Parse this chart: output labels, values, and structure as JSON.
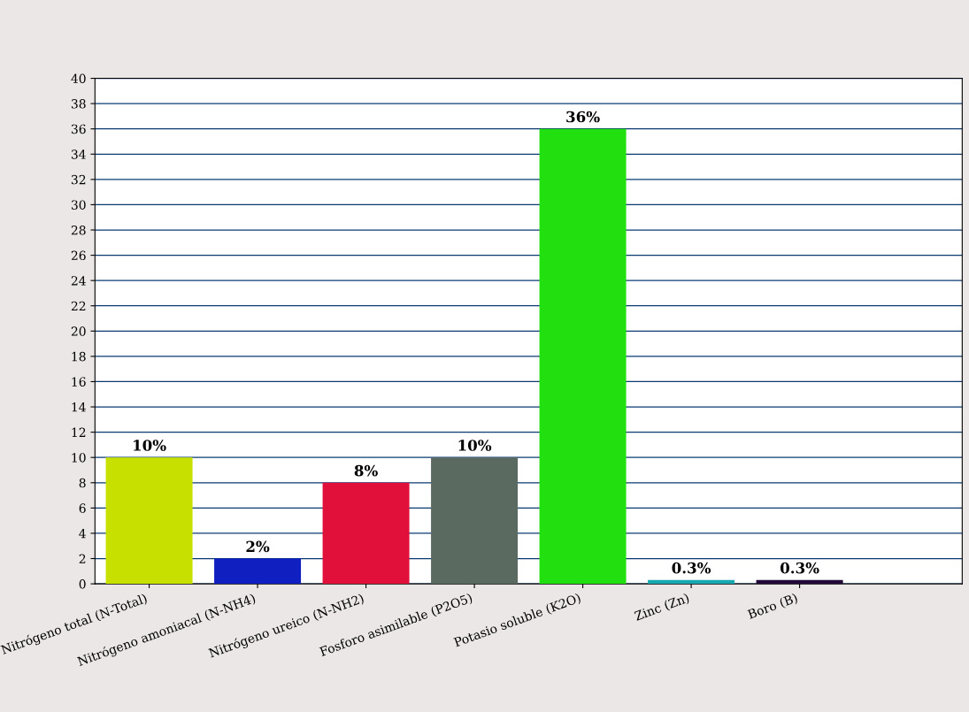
{
  "chart_data": {
    "type": "bar",
    "categories": [
      "Nitrógeno total (N-Total)",
      "Nitrógeno amoniacal (N-NH4)",
      "Nitrógeno ureico (N-NH2)",
      "Fosforo asimilable (P2O5)",
      "Potasio soluble (K2O)",
      "Zinc (Zn)",
      "Boro (B)"
    ],
    "values": [
      10,
      2,
      8,
      10,
      36,
      0.3,
      0.3
    ],
    "value_labels": [
      "10%",
      "2%",
      "8%",
      "10%",
      "36%",
      "0.3%",
      "0.3%"
    ],
    "colors": [
      "#c8e000",
      "#1020c0",
      "#e0103a",
      "#5a6a60",
      "#22e010",
      "#18a8b0",
      "#200838"
    ],
    "ylim": [
      0,
      40
    ],
    "yticks": [
      0,
      2,
      4,
      6,
      8,
      10,
      12,
      14,
      16,
      18,
      20,
      22,
      24,
      26,
      28,
      30,
      32,
      34,
      36,
      38,
      40
    ],
    "grid": "y"
  }
}
